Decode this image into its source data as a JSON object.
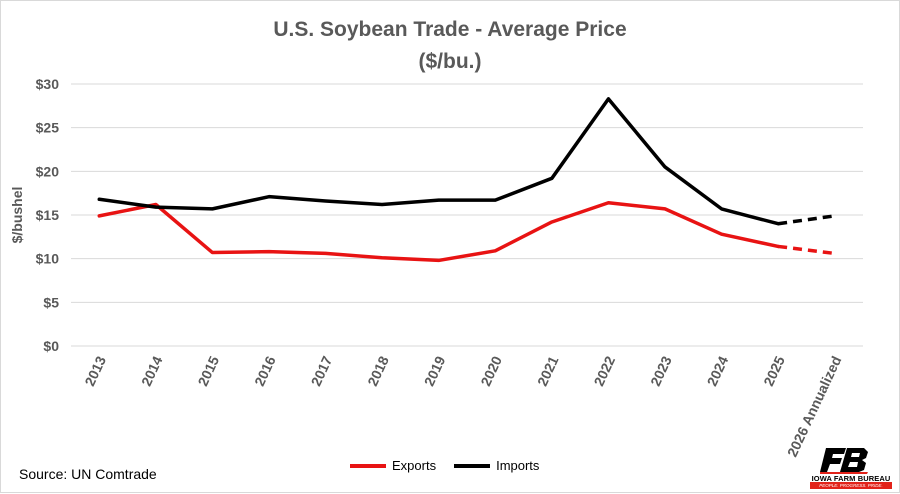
{
  "chart_data": {
    "type": "line",
    "title": "U.S. Soybean Trade - Average Price",
    "subtitle": "($/bu.)",
    "xlabel": "",
    "ylabel": "$/bushel",
    "categories": [
      "2013",
      "2014",
      "2015",
      "2016",
      "2017",
      "2018",
      "2019",
      "2020",
      "2021",
      "2022",
      "2023",
      "2024",
      "2025",
      "2026 Annualized"
    ],
    "ylim": [
      0,
      30
    ],
    "yticks": [
      0,
      5,
      10,
      15,
      20,
      25,
      30
    ],
    "ytick_labels": [
      "$0",
      "$5",
      "$10",
      "$15",
      "$20",
      "$25",
      "$30"
    ],
    "grid": true,
    "legend_position": "bottom",
    "dashed_from_category": "2025",
    "series": [
      {
        "name": "Exports",
        "color": "#e81313",
        "values": [
          14.9,
          16.2,
          10.7,
          10.8,
          10.6,
          10.1,
          9.8,
          10.9,
          14.2,
          16.4,
          15.7,
          12.8,
          11.4,
          10.6
        ]
      },
      {
        "name": "Imports",
        "color": "#000000",
        "values": [
          16.8,
          15.9,
          15.7,
          17.1,
          16.6,
          16.2,
          16.7,
          16.7,
          19.2,
          28.3,
          20.5,
          15.7,
          14.0,
          14.9
        ]
      }
    ]
  },
  "source_text": "Source: UN Comtrade",
  "logo": {
    "name": "IOWA FARM BUREAU",
    "tagline": "PEOPLE. PROGRESS. PRIDE.",
    "mark_color": "#000000",
    "accent_color": "#e2231a"
  }
}
